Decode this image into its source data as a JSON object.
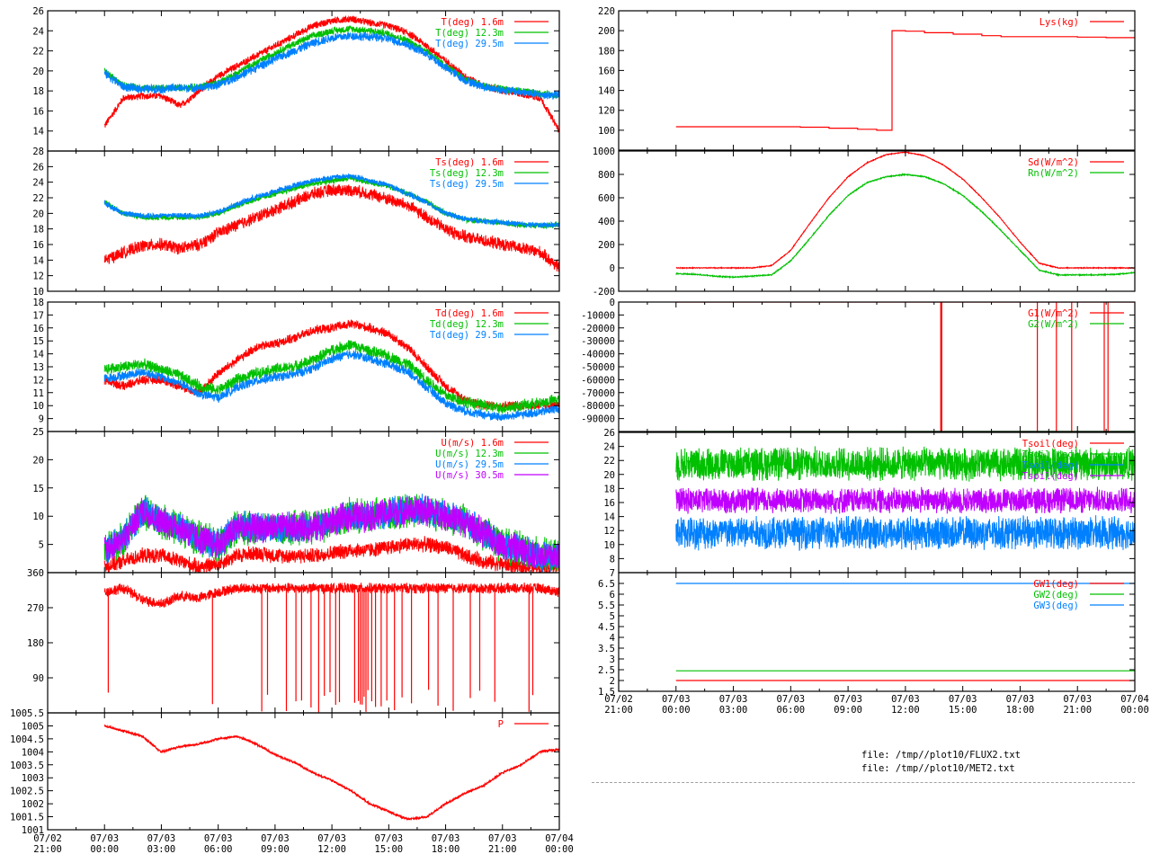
{
  "colors": {
    "red": "#ff0000",
    "green": "#00c000",
    "blue": "#0080ff",
    "purple": "#c000ff",
    "axis": "#000000"
  },
  "x_ticks": {
    "dates": [
      "07/02",
      "07/03",
      "07/03",
      "07/03",
      "07/03",
      "07/03",
      "07/03",
      "07/03",
      "07/03",
      "07/04"
    ],
    "times": [
      "21:00",
      "00:00",
      "03:00",
      "06:00",
      "09:00",
      "12:00",
      "15:00",
      "18:00",
      "21:00",
      "00:00"
    ],
    "hours": [
      -3,
      0,
      3,
      6,
      9,
      12,
      15,
      18,
      21,
      24
    ]
  },
  "footer": {
    "file1": "file: /tmp//plot10/FLUX2.txt",
    "file2": "file: /tmp//plot10/MET2.txt"
  },
  "chart_data": [
    {
      "id": "air-temp",
      "type": "line",
      "ylim": [
        12,
        26
      ],
      "yticks": [
        "14",
        "16",
        "18",
        "20",
        "22",
        "24",
        "26"
      ],
      "ytick_values": [
        14,
        16,
        18,
        20,
        22,
        24,
        26
      ],
      "series": [
        {
          "name": "T(deg)  1.6m",
          "color": "red",
          "noise": 0.4,
          "values": [
            14.5,
            17.3,
            17.5,
            17.5,
            16.5,
            18,
            19.5,
            20.5,
            21.5,
            22.5,
            23.5,
            24.5,
            25,
            25.2,
            24.8,
            24.5,
            23.8,
            22.5,
            21,
            19.5,
            18.5,
            18,
            17.7,
            17.3,
            14
          ]
        },
        {
          "name": "T(deg) 12.3m",
          "color": "green",
          "noise": 0.4,
          "values": [
            20,
            18.5,
            18.3,
            18.3,
            18.3,
            18.4,
            18.8,
            19.8,
            20.8,
            21.8,
            22.7,
            23.5,
            24,
            24.2,
            24,
            23.7,
            23,
            22,
            20.5,
            19.2,
            18.5,
            18.2,
            18,
            17.7,
            17.6
          ]
        },
        {
          "name": "T(deg) 29.5m",
          "color": "blue",
          "noise": 0.5,
          "values": [
            19.8,
            18.4,
            18.2,
            18.2,
            18.3,
            18.3,
            18.6,
            19.4,
            20.3,
            21.2,
            22,
            22.8,
            23.3,
            23.5,
            23.4,
            23.2,
            22.6,
            21.7,
            20.3,
            19.1,
            18.4,
            18.1,
            17.9,
            17.6,
            17.6
          ]
        }
      ]
    },
    {
      "id": "surface-temp",
      "type": "line",
      "ylim": [
        10,
        28
      ],
      "yticks": [
        "10",
        "12",
        "14",
        "16",
        "18",
        "20",
        "22",
        "24",
        "26",
        "28"
      ],
      "ytick_values": [
        10,
        12,
        14,
        16,
        18,
        20,
        22,
        24,
        26,
        28
      ],
      "series": [
        {
          "name": "Ts(deg)  1.6m",
          "color": "red",
          "noise": 0.9,
          "values": [
            14,
            15,
            15.8,
            16,
            15.5,
            16,
            17.5,
            18.5,
            19.5,
            20.5,
            21.5,
            22.5,
            23,
            23,
            22.5,
            21.8,
            21,
            19.5,
            18,
            17,
            16.5,
            16,
            15.5,
            15,
            13
          ]
        },
        {
          "name": "Ts(deg) 12.3m",
          "color": "green",
          "noise": 0.4,
          "values": [
            21.5,
            20,
            19.5,
            19.5,
            19.5,
            19.5,
            20,
            21,
            21.8,
            22.5,
            23.2,
            23.8,
            24.2,
            24.5,
            24,
            23.5,
            22.5,
            21.5,
            20,
            19.2,
            19,
            18.8,
            18.5,
            18.4,
            18.5
          ]
        },
        {
          "name": "Ts(deg) 29.5m",
          "color": "blue",
          "noise": 0.4,
          "values": [
            21.3,
            20,
            19.7,
            19.7,
            19.8,
            19.6,
            20.2,
            21.2,
            22.1,
            22.8,
            23.6,
            24.2,
            24.6,
            24.8,
            24.2,
            23.6,
            22.5,
            21.4,
            20,
            19.3,
            19,
            18.8,
            18.6,
            18.5,
            18.6
          ]
        }
      ]
    },
    {
      "id": "dew-point",
      "type": "line",
      "ylim": [
        8,
        18
      ],
      "yticks": [
        "9",
        "10",
        "11",
        "12",
        "13",
        "14",
        "15",
        "16",
        "17",
        "18"
      ],
      "ytick_values": [
        9,
        10,
        11,
        12,
        13,
        14,
        15,
        16,
        17,
        18
      ],
      "series": [
        {
          "name": "Td(deg)  1.6m",
          "color": "red",
          "noise": 0.4,
          "values": [
            12,
            11.5,
            12,
            12,
            11.5,
            11,
            12.5,
            13.5,
            14.5,
            14.8,
            15.2,
            15.8,
            16,
            16.3,
            16,
            15.5,
            14.5,
            13,
            11.5,
            10.5,
            10,
            10,
            10,
            10,
            10
          ]
        },
        {
          "name": "Td(deg) 12.3m",
          "color": "green",
          "noise": 0.5,
          "values": [
            12.8,
            13,
            13.2,
            12.8,
            12.3,
            11.5,
            11.2,
            12,
            12.5,
            12.8,
            13,
            13.5,
            14.3,
            14.7,
            14.2,
            13.8,
            13.2,
            12,
            10.8,
            10.3,
            10,
            9.8,
            10,
            10.2,
            10.5
          ]
        },
        {
          "name": "Td(deg) 29.5m",
          "color": "blue",
          "noise": 0.4,
          "values": [
            12.1,
            12.3,
            12.6,
            12.2,
            11.7,
            10.9,
            10.6,
            11.4,
            11.9,
            12.2,
            12.4,
            12.9,
            13.6,
            14,
            13.6,
            13.2,
            12.6,
            11.4,
            10.2,
            9.6,
            9.3,
            9.1,
            9.3,
            9.5,
            9.8
          ]
        }
      ]
    },
    {
      "id": "wind-speed",
      "type": "line",
      "ylim": [
        0,
        25
      ],
      "yticks": [
        "5",
        "10",
        "15",
        "20",
        "25"
      ],
      "ytick_values": [
        5,
        10,
        15,
        20,
        25
      ],
      "series": [
        {
          "name": "U(m/s)  1.6m",
          "color": "red",
          "noise": 1.5,
          "values": [
            1,
            2,
            3,
            3,
            2,
            1,
            1.5,
            3,
            3.5,
            3,
            3,
            3,
            3.5,
            4,
            4,
            4.5,
            5,
            5,
            4.5,
            3,
            2,
            1.5,
            1,
            1,
            1
          ]
        },
        {
          "name": "U(m/s) 12.3m",
          "color": "green",
          "noise": 3.5,
          "values": [
            4,
            6,
            11,
            9,
            8,
            6,
            5,
            8,
            8,
            8,
            8,
            8,
            9,
            10,
            10,
            10.5,
            11,
            11,
            10,
            9,
            7,
            5,
            4,
            3,
            3
          ]
        },
        {
          "name": "U(m/s) 29.5m",
          "color": "blue",
          "noise": 3,
          "values": [
            4,
            6,
            11,
            9,
            8,
            6,
            5,
            8,
            8,
            8,
            8,
            8,
            9,
            10,
            10,
            10.5,
            11,
            11,
            10,
            9,
            7,
            5,
            4,
            3,
            3
          ]
        },
        {
          "name": "U(m/s) 30.5m",
          "color": "purple",
          "noise": 3,
          "values": [
            4,
            6,
            11,
            9,
            8,
            6,
            5,
            8,
            8,
            8,
            8,
            8,
            9,
            10,
            10,
            10.5,
            11,
            11,
            10,
            9,
            7,
            5,
            4,
            3,
            3
          ]
        }
      ]
    },
    {
      "id": "wind-direction",
      "type": "line",
      "ylim": [
        0,
        360
      ],
      "yticks": [
        "90",
        "180",
        "270",
        "360"
      ],
      "ytick_values": [
        90,
        180,
        270,
        360
      ],
      "series": [
        {
          "name": "",
          "color": "red",
          "noise": 15,
          "values": [
            310,
            320,
            290,
            280,
            300,
            295,
            310,
            320,
            320,
            320,
            320,
            320,
            320,
            320,
            320,
            320,
            320,
            320,
            320,
            320,
            320,
            320,
            320,
            320,
            310
          ],
          "spikes": [
            0.2,
            5.7,
            8.3,
            8.6,
            9.6,
            10.1,
            10.4,
            10.9,
            11.3,
            11.6,
            11.9,
            12.2,
            12.4,
            13.2,
            13.4,
            13.5,
            13.6,
            13.7,
            13.8,
            13.9,
            14.1,
            14.3,
            14.6,
            14.9,
            15.3,
            15.7,
            16.2,
            17.1,
            17.6,
            18.4,
            19.3,
            19.8,
            20.6,
            22.4,
            22.6
          ]
        }
      ]
    },
    {
      "id": "pressure",
      "type": "line",
      "ylim": [
        1001,
        1005.5
      ],
      "yticks": [
        "1001",
        "1001.5",
        "1002",
        "1002.5",
        "1003",
        "1003.5",
        "1004",
        "1004.5",
        "1005",
        "1005.5"
      ],
      "ytick_values": [
        1001,
        1001.5,
        1002,
        1002.5,
        1003,
        1003.5,
        1004,
        1004.5,
        1005,
        1005.5
      ],
      "series": [
        {
          "name": "P",
          "color": "red",
          "noise": 0.05,
          "values": [
            1005,
            1004.8,
            1004.6,
            1004,
            1004.2,
            1004.3,
            1004.5,
            1004.6,
            1004.3,
            1003.9,
            1003.6,
            1003.2,
            1002.9,
            1002.5,
            1002,
            1001.7,
            1001.4,
            1001.5,
            1002,
            1002.4,
            1002.7,
            1003.2,
            1003.5,
            1004,
            1004.1
          ]
        }
      ]
    },
    {
      "id": "lysimeter",
      "type": "line",
      "ylim": [
        80,
        220
      ],
      "yticks": [
        "100",
        "120",
        "140",
        "160",
        "180",
        "200",
        "220"
      ],
      "ytick_values": [
        100,
        120,
        140,
        160,
        180,
        200,
        220
      ],
      "series": [
        {
          "name": "Lys(kg)",
          "color": "red",
          "noise": 0,
          "steps": [
            [
              0,
              103.5
            ],
            [
              6.5,
              103
            ],
            [
              8,
              102
            ],
            [
              9.5,
              101
            ],
            [
              10.5,
              100
            ],
            [
              11.3,
              100
            ],
            [
              11.3,
              200
            ],
            [
              12,
              199.5
            ],
            [
              13,
              198
            ],
            [
              14.5,
              196.5
            ],
            [
              16,
              195
            ],
            [
              17,
              194
            ],
            [
              21,
              193.5
            ],
            [
              22.5,
              193
            ],
            [
              24,
              193
            ]
          ]
        }
      ]
    },
    {
      "id": "radiation",
      "type": "line",
      "ylim": [
        -200,
        1000
      ],
      "yticks": [
        "-200",
        "0",
        "200",
        "400",
        "600",
        "800",
        "1000"
      ],
      "ytick_values": [
        -200,
        0,
        200,
        400,
        600,
        800,
        1000
      ],
      "series": [
        {
          "name": "Sd(W/m^2)",
          "color": "red",
          "noise": 4,
          "values": [
            0,
            0,
            0,
            0,
            0,
            20,
            150,
            380,
            600,
            780,
            900,
            970,
            990,
            960,
            880,
            760,
            600,
            420,
            220,
            40,
            0,
            0,
            0,
            0,
            0
          ]
        },
        {
          "name": "Rn(W/m^2)",
          "color": "green",
          "noise": 5,
          "values": [
            -50,
            -55,
            -70,
            -80,
            -70,
            -60,
            60,
            250,
            450,
            620,
            730,
            780,
            800,
            780,
            720,
            620,
            480,
            320,
            150,
            -20,
            -60,
            -60,
            -60,
            -55,
            -40
          ]
        }
      ]
    },
    {
      "id": "ground-heat-flux",
      "type": "line",
      "ylim": [
        -100000,
        0
      ],
      "yticks": [
        "-90000",
        "-80000",
        "-70000",
        "-60000",
        "-50000",
        "-40000",
        "-30000",
        "-20000",
        "-10000",
        "0"
      ],
      "ytick_values": [
        -90000,
        -80000,
        -70000,
        -60000,
        -50000,
        -40000,
        -30000,
        -20000,
        -10000,
        0
      ],
      "series": [
        {
          "name": "G1(W/m^2)",
          "color": "red",
          "noise": 0,
          "values": [
            0,
            0
          ],
          "spikes": [
            13.85,
            13.9,
            18.9,
            19.9,
            20.7,
            22.4,
            22.6
          ]
        },
        {
          "name": "G2(W/m^2)",
          "color": "green",
          "noise": 0,
          "values": [
            -100000,
            -100000
          ]
        }
      ]
    },
    {
      "id": "soil-temp",
      "type": "line",
      "ylim": [
        6,
        26
      ],
      "yticks": [
        "8",
        "10",
        "12",
        "14",
        "16",
        "18",
        "20",
        "22",
        "24",
        "26"
      ],
      "ytick_values": [
        8,
        10,
        12,
        14,
        16,
        18,
        20,
        22,
        24,
        26
      ],
      "series": [
        {
          "name": "Tsoil(deg)",
          "color": "red",
          "noise": 0,
          "values": []
        },
        {
          "name": "Tsoil(deg)",
          "color": "green",
          "noise": 2.6,
          "values": [
            21.5,
            21.5
          ]
        },
        {
          "name": "Tsoil(deg)",
          "color": "blue",
          "noise": 2.6,
          "values": [
            11.7,
            11.7
          ]
        },
        {
          "name": "Tsoil(deg)",
          "color": "purple",
          "noise": 2,
          "values": [
            16.3,
            16.3
          ]
        }
      ]
    },
    {
      "id": "groundwater",
      "type": "line",
      "ylim": [
        1.5,
        7
      ],
      "yticks": [
        "1.5",
        "2",
        "2.5",
        "3",
        "3.5",
        "4",
        "4.5",
        "5",
        "5.5",
        "6",
        "6.5",
        "7"
      ],
      "ytick_values": [
        1.5,
        2,
        2.5,
        3,
        3.5,
        4,
        4.5,
        5,
        5.5,
        6,
        6.5,
        7
      ],
      "series": [
        {
          "name": "GW1(deg)",
          "color": "red",
          "noise": 0,
          "values": [
            2.0,
            2.0
          ]
        },
        {
          "name": "GW2(deg)",
          "color": "green",
          "noise": 0,
          "values": [
            2.45,
            2.45
          ]
        },
        {
          "name": "GW3(deg)",
          "color": "blue",
          "noise": 0,
          "values": [
            6.5,
            6.5
          ]
        }
      ]
    }
  ]
}
